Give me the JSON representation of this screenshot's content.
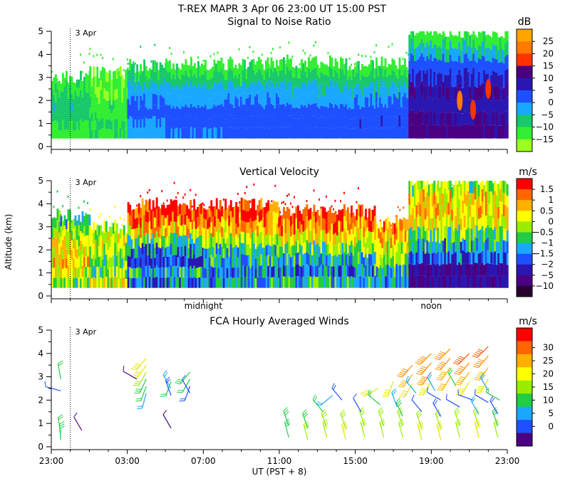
{
  "header": {
    "title": "T-REX   MAPR   3 Apr 06   23:00 UT   15:00   PST"
  },
  "x_axis": {
    "ticks": [
      "23:00",
      "03:00",
      "07:00",
      "11:00",
      "15:00",
      "19:00",
      "23:00"
    ],
    "tick_hours": [
      0,
      4,
      8,
      12,
      16,
      20,
      24
    ],
    "label": "UT  (PST + 8)",
    "range_hours": [
      0,
      24
    ],
    "day_marker": {
      "label": "3 Apr",
      "hour": 1.0
    },
    "markers": [
      {
        "label": "midnight",
        "hour": 8.0
      },
      {
        "label": "noon",
        "hour": 20.0
      }
    ]
  },
  "chart_data": [
    {
      "id": "snr",
      "type": "heatmap",
      "title": "Signal to Noise Ratio",
      "ylabel": "",
      "ylim": [
        0,
        5
      ],
      "yticks": [
        "0",
        "1",
        "2",
        "3",
        "4",
        "5"
      ],
      "colorbar": {
        "unit": "dB",
        "labels": [
          "25",
          "20",
          "15",
          "10",
          "5",
          "0",
          "−5",
          "−10",
          "−15"
        ],
        "colors": [
          "#ffa500",
          "#ff7a00",
          "#ff3300",
          "#4b0082",
          "#2a16b0",
          "#1f50ff",
          "#1aa8ff",
          "#18c86a",
          "#33ee33",
          "#99ff22"
        ]
      },
      "profiles": [
        {
          "h0": 0.0,
          "h1": 2.0,
          "top": 3.0,
          "levels": [
            -12,
            -10,
            -8,
            -6,
            -8,
            -10,
            -12
          ]
        },
        {
          "h0": 2.0,
          "h1": 4.0,
          "top": 3.2,
          "levels": [
            -10,
            -10,
            -12,
            -12,
            -14,
            -14,
            -15
          ]
        },
        {
          "h0": 4.0,
          "h1": 6.0,
          "top": 3.5,
          "levels": [
            -2,
            0,
            2,
            0,
            -2,
            -6,
            -10
          ]
        },
        {
          "h0": 6.0,
          "h1": 9.0,
          "top": 3.6,
          "levels": [
            0,
            2,
            1,
            -1,
            -3,
            -8,
            -12
          ]
        },
        {
          "h0": 9.0,
          "h1": 12.0,
          "top": 3.6,
          "levels": [
            1,
            3,
            2,
            0,
            -3,
            -8,
            -12
          ]
        },
        {
          "h0": 12.0,
          "h1": 15.0,
          "top": 3.7,
          "levels": [
            2,
            3,
            1,
            -1,
            -4,
            -8,
            -12
          ]
        },
        {
          "h0": 15.0,
          "h1": 18.8,
          "top": 3.6,
          "levels": [
            3,
            4,
            3,
            0,
            -4,
            -8,
            -12
          ]
        },
        {
          "h0": 18.8,
          "h1": 24.0,
          "top": 5.0,
          "levels": [
            12,
            10,
            8,
            10,
            6,
            2,
            -5,
            -12
          ]
        }
      ],
      "hotspots": [
        {
          "hour": 21.5,
          "alt": 2.0,
          "value": 20
        },
        {
          "hour": 23.0,
          "alt": 2.5,
          "value": 18
        },
        {
          "hour": 22.2,
          "alt": 1.6,
          "value": 15
        }
      ]
    },
    {
      "id": "vv",
      "type": "heatmap",
      "title": "Vertical Velocity",
      "ylabel": "Altitude (km)",
      "ylim": [
        0,
        5
      ],
      "yticks": [
        "0",
        "1",
        "2",
        "3",
        "4",
        "5"
      ],
      "colorbar": {
        "unit": "m/s",
        "labels": [
          "1.5",
          "1",
          "0.5",
          "0",
          "−0.5",
          "−1",
          "−1.5",
          "−2",
          "−5",
          "−10"
        ],
        "colors": [
          "#ff0000",
          "#ff6600",
          "#ffb000",
          "#ffff00",
          "#99ee00",
          "#22cc44",
          "#1aa8ff",
          "#1f50ff",
          "#2a16b0",
          "#4b0082",
          "#2a0030"
        ]
      },
      "profiles": [
        {
          "h0": 0.0,
          "h1": 2.0,
          "top": 3.5,
          "levels": [
            -0.3,
            0.2,
            0.6,
            0.3,
            0.1,
            -0.3,
            -1.0
          ]
        },
        {
          "h0": 2.0,
          "h1": 4.0,
          "top": 3.0,
          "levels": [
            0.0,
            -0.5,
            -0.6,
            -0.3,
            0.0,
            0.0
          ]
        },
        {
          "h0": 4.0,
          "h1": 8.0,
          "top": 4.0,
          "levels": [
            -1.5,
            -1.0,
            -2.0,
            -1.5,
            -0.5,
            0.5,
            1.2,
            1.5
          ]
        },
        {
          "h0": 8.0,
          "h1": 12.0,
          "top": 4.0,
          "levels": [
            -1.2,
            -1.5,
            -1.0,
            -0.8,
            -0.2,
            0.6,
            1.3,
            1.6
          ]
        },
        {
          "h0": 12.0,
          "h1": 17.0,
          "top": 3.7,
          "levels": [
            -1.0,
            -1.5,
            -1.0,
            -0.5,
            0.2,
            1.0,
            1.5
          ]
        },
        {
          "h0": 17.0,
          "h1": 18.8,
          "top": 3.2,
          "levels": [
            -1.5,
            -1.0,
            -0.5,
            0.0,
            0.5,
            1.0
          ]
        },
        {
          "h0": 18.8,
          "h1": 24.0,
          "top": 5.0,
          "levels": [
            -5,
            -5,
            -2,
            -1.2,
            -0.5,
            0.3,
            0.6,
            0.4,
            -0.3
          ]
        }
      ]
    },
    {
      "id": "winds",
      "type": "scatter",
      "title": "FCA Hourly Averaged Winds",
      "ylabel": "",
      "ylim": [
        0,
        5
      ],
      "yticks": [
        "0",
        "1",
        "2",
        "3",
        "4",
        "5"
      ],
      "colorbar": {
        "unit": "m/s",
        "labels": [
          "30",
          "25",
          "20",
          "15",
          "10",
          "5",
          "0"
        ],
        "colors": [
          "#ff0000",
          "#ff6600",
          "#ffb000",
          "#ffff00",
          "#99ee00",
          "#22cc44",
          "#1aa8ff",
          "#1f50ff",
          "#4b0082"
        ]
      },
      "barbs": [
        {
          "hour": 0.5,
          "alt": 2.4,
          "speed": 7,
          "dir": 285
        },
        {
          "hour": 0.5,
          "alt": 0.6,
          "speed": 12,
          "dir": 350
        },
        {
          "hour": 0.5,
          "alt": 0.3,
          "speed": 14,
          "dir": 355
        },
        {
          "hour": 0.5,
          "alt": 2.9,
          "speed": 12,
          "dir": 350
        },
        {
          "hour": 1.6,
          "alt": 0.7,
          "speed": 5,
          "dir": 330
        },
        {
          "hour": 5.0,
          "alt": 3.8,
          "speed": 20,
          "dir": 220
        },
        {
          "hour": 5.0,
          "alt": 3.5,
          "speed": 19,
          "dir": 215
        },
        {
          "hour": 5.0,
          "alt": 3.2,
          "speed": 17,
          "dir": 210
        },
        {
          "hour": 5.0,
          "alt": 2.9,
          "speed": 14,
          "dir": 205
        },
        {
          "hour": 5.0,
          "alt": 2.6,
          "speed": 12,
          "dir": 200
        },
        {
          "hour": 5.0,
          "alt": 2.3,
          "speed": 9,
          "dir": 195
        },
        {
          "hour": 4.5,
          "alt": 2.9,
          "speed": 5,
          "dir": 300
        },
        {
          "hour": 6.3,
          "alt": 2.8,
          "speed": 12,
          "dir": 200
        },
        {
          "hour": 6.3,
          "alt": 2.5,
          "speed": 9,
          "dir": 330
        },
        {
          "hour": 6.3,
          "alt": 2.2,
          "speed": 8,
          "dir": 340
        },
        {
          "hour": 6.3,
          "alt": 0.8,
          "speed": 5,
          "dir": 330
        },
        {
          "hour": 7.3,
          "alt": 3.2,
          "speed": 14,
          "dir": 220
        },
        {
          "hour": 7.3,
          "alt": 2.9,
          "speed": 12,
          "dir": 210
        },
        {
          "hour": 7.3,
          "alt": 2.6,
          "speed": 8,
          "dir": 200
        },
        {
          "hour": 7.3,
          "alt": 2.3,
          "speed": 6,
          "dir": 330
        },
        {
          "hour": 12.5,
          "alt": 0.4,
          "speed": 14,
          "dir": 345
        },
        {
          "hour": 12.5,
          "alt": 0.9,
          "speed": 13,
          "dir": 340
        },
        {
          "hour": 13.5,
          "alt": 0.3,
          "speed": 15,
          "dir": 345
        },
        {
          "hour": 13.5,
          "alt": 0.8,
          "speed": 14,
          "dir": 340
        },
        {
          "hour": 14.3,
          "alt": 1.5,
          "speed": 12,
          "dir": 320
        },
        {
          "hour": 14.5,
          "alt": 0.4,
          "speed": 17,
          "dir": 345
        },
        {
          "hour": 14.5,
          "alt": 0.8,
          "speed": 16,
          "dir": 340
        },
        {
          "hour": 14.8,
          "alt": 2.2,
          "speed": 10,
          "dir": 230
        },
        {
          "hour": 15.5,
          "alt": 0.3,
          "speed": 18,
          "dir": 345
        },
        {
          "hour": 15.5,
          "alt": 0.8,
          "speed": 17,
          "dir": 340
        },
        {
          "hour": 15.3,
          "alt": 2.0,
          "speed": 8,
          "dir": 320
        },
        {
          "hour": 16.5,
          "alt": 0.4,
          "speed": 17,
          "dir": 345
        },
        {
          "hour": 16.5,
          "alt": 0.9,
          "speed": 16,
          "dir": 340
        },
        {
          "hour": 16.3,
          "alt": 1.5,
          "speed": 6,
          "dir": 330
        },
        {
          "hour": 17.2,
          "alt": 2.5,
          "speed": 18,
          "dir": 240
        },
        {
          "hour": 17.3,
          "alt": 1.8,
          "speed": 12,
          "dir": 310
        },
        {
          "hour": 17.5,
          "alt": 0.4,
          "speed": 16,
          "dir": 345
        },
        {
          "hour": 17.5,
          "alt": 0.9,
          "speed": 15,
          "dir": 340
        },
        {
          "hour": 18.0,
          "alt": 2.8,
          "speed": 18,
          "dir": 200
        },
        {
          "hour": 18.2,
          "alt": 1.7,
          "speed": 9,
          "dir": 340
        },
        {
          "hour": 18.5,
          "alt": 0.4,
          "speed": 17,
          "dir": 345
        },
        {
          "hour": 18.5,
          "alt": 0.9,
          "speed": 16,
          "dir": 340
        },
        {
          "hour": 18.5,
          "alt": 1.3,
          "speed": 14,
          "dir": 335
        },
        {
          "hour": 19.0,
          "alt": 3.5,
          "speed": 24,
          "dir": 220
        },
        {
          "hour": 19.0,
          "alt": 3.1,
          "speed": 22,
          "dir": 215
        },
        {
          "hour": 19.0,
          "alt": 2.7,
          "speed": 18,
          "dir": 210
        },
        {
          "hour": 19.2,
          "alt": 2.3,
          "speed": 10,
          "dir": 320
        },
        {
          "hour": 19.5,
          "alt": 0.3,
          "speed": 18,
          "dir": 345
        },
        {
          "hour": 19.5,
          "alt": 0.8,
          "speed": 16,
          "dir": 340
        },
        {
          "hour": 19.5,
          "alt": 1.5,
          "speed": 7,
          "dir": 320
        },
        {
          "hour": 20.0,
          "alt": 4.0,
          "speed": 26,
          "dir": 225
        },
        {
          "hour": 20.0,
          "alt": 3.6,
          "speed": 25,
          "dir": 220
        },
        {
          "hour": 20.0,
          "alt": 3.2,
          "speed": 24,
          "dir": 215
        },
        {
          "hour": 20.0,
          "alt": 2.8,
          "speed": 20,
          "dir": 210
        },
        {
          "hour": 20.2,
          "alt": 2.4,
          "speed": 11,
          "dir": 330
        },
        {
          "hour": 20.5,
          "alt": 0.3,
          "speed": 18,
          "dir": 345
        },
        {
          "hour": 20.5,
          "alt": 0.8,
          "speed": 17,
          "dir": 340
        },
        {
          "hour": 20.5,
          "alt": 1.3,
          "speed": 8,
          "dir": 330
        },
        {
          "hour": 20.5,
          "alt": 2.0,
          "speed": 6,
          "dir": 300
        },
        {
          "hour": 21.0,
          "alt": 4.2,
          "speed": 26,
          "dir": 225
        },
        {
          "hour": 21.0,
          "alt": 3.8,
          "speed": 25,
          "dir": 220
        },
        {
          "hour": 21.0,
          "alt": 3.4,
          "speed": 23,
          "dir": 215
        },
        {
          "hour": 21.0,
          "alt": 3.0,
          "speed": 22,
          "dir": 210
        },
        {
          "hour": 21.3,
          "alt": 2.6,
          "speed": 12,
          "dir": 330
        },
        {
          "hour": 21.5,
          "alt": 0.4,
          "speed": 17,
          "dir": 345
        },
        {
          "hour": 21.5,
          "alt": 0.9,
          "speed": 17,
          "dir": 340
        },
        {
          "hour": 21.5,
          "alt": 1.7,
          "speed": 6,
          "dir": 300
        },
        {
          "hour": 22.0,
          "alt": 4.0,
          "speed": 27,
          "dir": 225
        },
        {
          "hour": 22.0,
          "alt": 3.6,
          "speed": 25,
          "dir": 220
        },
        {
          "hour": 22.0,
          "alt": 3.2,
          "speed": 23,
          "dir": 215
        },
        {
          "hour": 22.0,
          "alt": 2.8,
          "speed": 20,
          "dir": 210
        },
        {
          "hour": 22.2,
          "alt": 2.0,
          "speed": 6,
          "dir": 290
        },
        {
          "hour": 22.5,
          "alt": 0.4,
          "speed": 18,
          "dir": 345
        },
        {
          "hour": 22.5,
          "alt": 0.9,
          "speed": 17,
          "dir": 340
        },
        {
          "hour": 22.5,
          "alt": 1.4,
          "speed": 9,
          "dir": 330
        },
        {
          "hour": 23.0,
          "alt": 4.3,
          "speed": 27,
          "dir": 225
        },
        {
          "hour": 23.0,
          "alt": 3.9,
          "speed": 26,
          "dir": 220
        },
        {
          "hour": 23.0,
          "alt": 3.4,
          "speed": 23,
          "dir": 215
        },
        {
          "hour": 23.0,
          "alt": 2.9,
          "speed": 20,
          "dir": 210
        },
        {
          "hour": 23.0,
          "alt": 2.4,
          "speed": 10,
          "dir": 330
        },
        {
          "hour": 23.0,
          "alt": 1.9,
          "speed": 7,
          "dir": 300
        },
        {
          "hour": 23.5,
          "alt": 0.4,
          "speed": 15,
          "dir": 345
        },
        {
          "hour": 23.5,
          "alt": 0.9,
          "speed": 14,
          "dir": 340
        },
        {
          "hour": 23.5,
          "alt": 1.4,
          "speed": 8,
          "dir": 330
        },
        {
          "hour": 23.6,
          "alt": 2.0,
          "speed": 12,
          "dir": 300
        }
      ]
    }
  ]
}
